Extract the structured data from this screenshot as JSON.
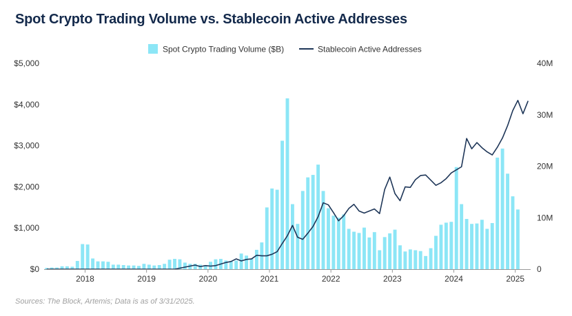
{
  "title": "Spot Crypto Trading Volume vs. Stablecoin Active Addresses",
  "source": "Sources: The Block, Artemis; Data is as of 3/31/2025.",
  "colors": {
    "bar": "#8ce6f6",
    "line": "#1d3557",
    "axis": "#999999"
  },
  "chart_data": {
    "type": "bar",
    "title": "Spot Crypto Trading Volume vs. Stablecoin Active Addresses",
    "legend": {
      "placement": "top-center",
      "entries": [
        "Spot Crypto Trading Volume ($B)",
        "Stablecoin Active Addresses"
      ]
    },
    "grid": false,
    "x_ticks": [
      "2018",
      "2019",
      "2020",
      "2021",
      "2022",
      "2023",
      "2024",
      "2025"
    ],
    "y_left": {
      "ylim": [
        0,
        5000
      ],
      "ticks": [
        "$0",
        "$1,000",
        "$2,000",
        "$3,000",
        "$4,000",
        "$5,000"
      ]
    },
    "y_right": {
      "ylim": [
        0,
        40000000
      ],
      "ticks": [
        "0",
        "10M",
        "20M",
        "30M",
        "40M"
      ]
    },
    "months": [
      "2017-05",
      "2017-06",
      "2017-07",
      "2017-08",
      "2017-09",
      "2017-10",
      "2017-11",
      "2017-12",
      "2018-01",
      "2018-02",
      "2018-03",
      "2018-04",
      "2018-05",
      "2018-06",
      "2018-07",
      "2018-08",
      "2018-09",
      "2018-10",
      "2018-11",
      "2018-12",
      "2019-01",
      "2019-02",
      "2019-03",
      "2019-04",
      "2019-05",
      "2019-06",
      "2019-07",
      "2019-08",
      "2019-09",
      "2019-10",
      "2019-11",
      "2019-12",
      "2020-01",
      "2020-02",
      "2020-03",
      "2020-04",
      "2020-05",
      "2020-06",
      "2020-07",
      "2020-08",
      "2020-09",
      "2020-10",
      "2020-11",
      "2020-12",
      "2021-01",
      "2021-02",
      "2021-03",
      "2021-04",
      "2021-05",
      "2021-06",
      "2021-07",
      "2021-08",
      "2021-09",
      "2021-10",
      "2021-11",
      "2021-12",
      "2022-01",
      "2022-02",
      "2022-03",
      "2022-04",
      "2022-05",
      "2022-06",
      "2022-07",
      "2022-08",
      "2022-09",
      "2022-10",
      "2022-11",
      "2022-12",
      "2023-01",
      "2023-02",
      "2023-03",
      "2023-04",
      "2023-05",
      "2023-06",
      "2023-07",
      "2023-08",
      "2023-09",
      "2023-10",
      "2023-11",
      "2023-12",
      "2024-01",
      "2024-02",
      "2024-03",
      "2024-04",
      "2024-05",
      "2024-06",
      "2024-07",
      "2024-08",
      "2024-09",
      "2024-10",
      "2024-11",
      "2024-12",
      "2025-01",
      "2025-02",
      "2025-03"
    ],
    "series": [
      {
        "name": "Spot Crypto Trading Volume ($B)",
        "type": "bar",
        "axis": "left",
        "values": [
          30,
          40,
          40,
          70,
          70,
          60,
          200,
          610,
          600,
          260,
          190,
          190,
          180,
          110,
          110,
          100,
          90,
          90,
          80,
          130,
          110,
          90,
          100,
          130,
          230,
          250,
          240,
          160,
          130,
          130,
          110,
          100,
          180,
          240,
          250,
          210,
          190,
          210,
          380,
          330,
          250,
          470,
          650,
          1500,
          1960,
          1930,
          3120,
          4150,
          1580,
          1100,
          1900,
          2230,
          2290,
          2540,
          1900,
          1480,
          1300,
          1250,
          1330,
          980,
          910,
          880,
          1010,
          770,
          900,
          460,
          780,
          870,
          960,
          580,
          430,
          480,
          460,
          440,
          320,
          510,
          810,
          1080,
          1130,
          1150,
          2480,
          1580,
          1220,
          1100,
          1110,
          1200,
          980,
          1120,
          2710,
          2930,
          2320,
          1770,
          1450
        ]
      },
      {
        "name": "Stablecoin Active Addresses",
        "type": "line",
        "axis": "right",
        "values": [
          0,
          0,
          0,
          0,
          0,
          0,
          0,
          0,
          0,
          0,
          0,
          0,
          0,
          0,
          0,
          0,
          0,
          0,
          0,
          0,
          0,
          0,
          0,
          0,
          0,
          0,
          200000,
          400000,
          600000,
          800000,
          500000,
          700000,
          600000,
          700000,
          1000000,
          1300000,
          1500000,
          2000000,
          1600000,
          1900000,
          2000000,
          2700000,
          2600000,
          2600000,
          2900000,
          3400000,
          5000000,
          6500000,
          8500000,
          6200000,
          5800000,
          7000000,
          8300000,
          10200000,
          12900000,
          12500000,
          11000000,
          9400000,
          10400000,
          11800000,
          12600000,
          11300000,
          10900000,
          11300000,
          11700000,
          10800000,
          15500000,
          17900000,
          14700000,
          13300000,
          16000000,
          15900000,
          17400000,
          18200000,
          18300000,
          17300000,
          16300000,
          16800000,
          17600000,
          18700000,
          19300000,
          19900000,
          25400000,
          23400000,
          24600000,
          23600000,
          22800000,
          22200000,
          23700000,
          25500000,
          27900000,
          30800000,
          32800000,
          30200000,
          32700000
        ]
      }
    ]
  }
}
